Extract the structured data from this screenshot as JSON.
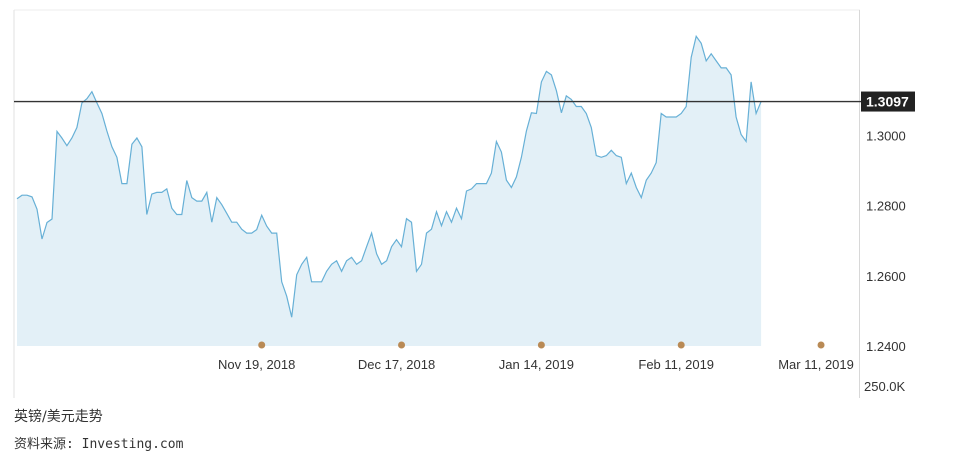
{
  "chart_data": {
    "type": "area",
    "current_value_label": "1.3097",
    "current_value": 1.3097,
    "x_tick_labels": [
      "Nov 19, 2018",
      "Dec 17, 2018",
      "Jan 14, 2019",
      "Feb 11, 2019",
      "Mar 11, 2019"
    ],
    "y_tick_labels": [
      "1.2400",
      "1.2600",
      "1.2800",
      "1.3000"
    ],
    "y_ticks": [
      1.24,
      1.26,
      1.28,
      1.3
    ],
    "volume_label": "250.0K",
    "ylim": [
      1.24,
      1.3358
    ],
    "x_domain_days": [
      0,
      168
    ],
    "marker_days": [
      49,
      77,
      105,
      133,
      161
    ],
    "series": [
      {
        "points": [
          [
            0,
            1.282
          ],
          [
            1,
            1.283
          ],
          [
            2,
            1.283
          ],
          [
            3,
            1.2825
          ],
          [
            4,
            1.279
          ],
          [
            5,
            1.2705
          ],
          [
            6,
            1.2752
          ],
          [
            7,
            1.2762
          ],
          [
            8,
            1.3012
          ],
          [
            9,
            1.2993
          ],
          [
            10,
            1.2971
          ],
          [
            11,
            1.2993
          ],
          [
            12,
            1.3023
          ],
          [
            13,
            1.3093
          ],
          [
            14,
            1.3105
          ],
          [
            15,
            1.3125
          ],
          [
            16,
            1.3093
          ],
          [
            17,
            1.3063
          ],
          [
            18,
            1.3013
          ],
          [
            19,
            1.2968
          ],
          [
            20,
            1.2938
          ],
          [
            21,
            1.2863
          ],
          [
            22,
            1.2863
          ],
          [
            23,
            1.2975
          ],
          [
            24,
            1.2993
          ],
          [
            25,
            1.2968
          ],
          [
            26,
            1.2775
          ],
          [
            27,
            1.2833
          ],
          [
            28,
            1.2838
          ],
          [
            29,
            1.2838
          ],
          [
            30,
            1.2848
          ],
          [
            31,
            1.2793
          ],
          [
            32,
            1.2775
          ],
          [
            33,
            1.2775
          ],
          [
            34,
            1.2872
          ],
          [
            35,
            1.2823
          ],
          [
            36,
            1.2813
          ],
          [
            37,
            1.2813
          ],
          [
            38,
            1.2838
          ],
          [
            39,
            1.2753
          ],
          [
            40,
            1.2823
          ],
          [
            41,
            1.2803
          ],
          [
            42,
            1.2778
          ],
          [
            43,
            1.2753
          ],
          [
            44,
            1.2753
          ],
          [
            45,
            1.2733
          ],
          [
            46,
            1.2722
          ],
          [
            47,
            1.2722
          ],
          [
            48,
            1.2732
          ],
          [
            49,
            1.2773
          ],
          [
            50,
            1.2742
          ],
          [
            51,
            1.2722
          ],
          [
            52,
            1.2722
          ],
          [
            53,
            1.2583
          ],
          [
            54,
            1.2542
          ],
          [
            55,
            1.2482
          ],
          [
            56,
            1.2603
          ],
          [
            57,
            1.2633
          ],
          [
            58,
            1.2653
          ],
          [
            59,
            1.2583
          ],
          [
            60,
            1.2583
          ],
          [
            61,
            1.2583
          ],
          [
            62,
            1.2613
          ],
          [
            63,
            1.2633
          ],
          [
            64,
            1.2643
          ],
          [
            65,
            1.2613
          ],
          [
            66,
            1.2643
          ],
          [
            67,
            1.2653
          ],
          [
            68,
            1.2633
          ],
          [
            69,
            1.2643
          ],
          [
            70,
            1.2683
          ],
          [
            71,
            1.2722
          ],
          [
            72,
            1.2663
          ],
          [
            73,
            1.2633
          ],
          [
            74,
            1.2643
          ],
          [
            75,
            1.2683
          ],
          [
            76,
            1.2703
          ],
          [
            77,
            1.2683
          ],
          [
            78,
            1.2763
          ],
          [
            79,
            1.2753
          ],
          [
            80,
            1.2613
          ],
          [
            81,
            1.2633
          ],
          [
            82,
            1.2722
          ],
          [
            83,
            1.2733
          ],
          [
            84,
            1.2783
          ],
          [
            85,
            1.2743
          ],
          [
            86,
            1.2783
          ],
          [
            87,
            1.2753
          ],
          [
            88,
            1.2793
          ],
          [
            89,
            1.2763
          ],
          [
            90,
            1.2842
          ],
          [
            91,
            1.2848
          ],
          [
            92,
            1.2863
          ],
          [
            93,
            1.2863
          ],
          [
            94,
            1.2863
          ],
          [
            95,
            1.2893
          ],
          [
            96,
            1.2983
          ],
          [
            97,
            1.2953
          ],
          [
            98,
            1.2873
          ],
          [
            99,
            1.2852
          ],
          [
            100,
            1.2882
          ],
          [
            101,
            1.2938
          ],
          [
            102,
            1.3013
          ],
          [
            103,
            1.3065
          ],
          [
            104,
            1.3063
          ],
          [
            105,
            1.3153
          ],
          [
            106,
            1.3183
          ],
          [
            107,
            1.3173
          ],
          [
            108,
            1.3128
          ],
          [
            109,
            1.3065
          ],
          [
            110,
            1.3113
          ],
          [
            111,
            1.3103
          ],
          [
            112,
            1.3083
          ],
          [
            113,
            1.3083
          ],
          [
            114,
            1.3063
          ],
          [
            115,
            1.3023
          ],
          [
            116,
            1.2943
          ],
          [
            117,
            1.2938
          ],
          [
            118,
            1.2943
          ],
          [
            119,
            1.2958
          ],
          [
            120,
            1.2943
          ],
          [
            121,
            1.2938
          ],
          [
            122,
            1.2863
          ],
          [
            123,
            1.2893
          ],
          [
            124,
            1.2852
          ],
          [
            125,
            1.2823
          ],
          [
            126,
            1.2873
          ],
          [
            127,
            1.2893
          ],
          [
            128,
            1.2923
          ],
          [
            129,
            1.3063
          ],
          [
            130,
            1.3053
          ],
          [
            131,
            1.3053
          ],
          [
            132,
            1.3053
          ],
          [
            133,
            1.3063
          ],
          [
            134,
            1.3083
          ],
          [
            135,
            1.3223
          ],
          [
            136,
            1.3283
          ],
          [
            137,
            1.3263
          ],
          [
            138,
            1.3213
          ],
          [
            139,
            1.3233
          ],
          [
            140,
            1.3213
          ],
          [
            141,
            1.3193
          ],
          [
            142,
            1.3193
          ],
          [
            143,
            1.3173
          ],
          [
            144,
            1.3053
          ],
          [
            145,
            1.3003
          ],
          [
            146,
            1.2983
          ],
          [
            147,
            1.3153
          ],
          [
            148,
            1.3063
          ],
          [
            149,
            1.3097
          ]
        ]
      }
    ]
  },
  "caption": {
    "title": "英镑/美元走势",
    "source": "资料来源: Investing.com"
  }
}
